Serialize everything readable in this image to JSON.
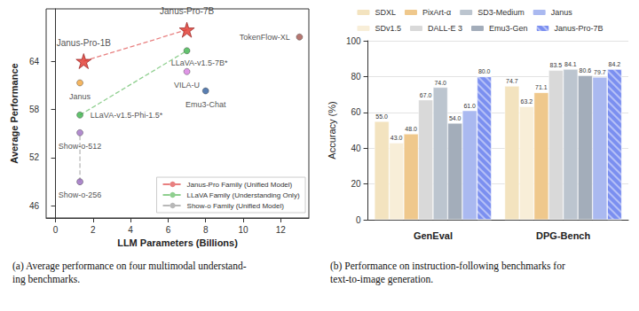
{
  "chart_data": [
    {
      "type": "scatter",
      "caption": [
        "(a) Average performance on four multimodal understand-",
        "ing benchmarks."
      ],
      "x_label": "LLM Parameters (Billions)",
      "y_label": "Average Performance",
      "xlim": [
        -0.5,
        13.5
      ],
      "xticks": [
        0,
        2,
        4,
        6,
        8,
        10,
        12
      ],
      "ylim": [
        44.5,
        70.5
      ],
      "yticks": [
        46,
        52,
        58,
        64
      ],
      "grid": false,
      "legend": "lower right",
      "points": [
        {
          "label": "Janus-Pro-1B",
          "x": 1.5,
          "y": 64.0,
          "color": "#e0342b",
          "marker": "star"
        },
        {
          "label": "Janus-Pro-7B",
          "x": 7,
          "y": 67.9,
          "color": "#e0342b",
          "marker": "star"
        },
        {
          "label": "Janus",
          "x": 1.3,
          "y": 61.3,
          "color": "#f2a43a",
          "marker": "circle"
        },
        {
          "label": "TokenFlow-XL",
          "x": 13,
          "y": 67.0,
          "color": "#a4554e",
          "marker": "circle"
        },
        {
          "label": "LLaVA-v1.5-7B*",
          "x": 7,
          "y": 65.3,
          "color": "#3cb44b",
          "marker": "circle"
        },
        {
          "label": "VILA-U",
          "x": 7,
          "y": 62.7,
          "color": "#d77be0",
          "marker": "circle"
        },
        {
          "label": "Emu3-Chat",
          "x": 8,
          "y": 60.3,
          "color": "#2f5e9e",
          "marker": "circle"
        },
        {
          "label": "LLaVA-v1.5-Phi-1.5*",
          "x": 1.3,
          "y": 57.3,
          "color": "#3cb44b",
          "marker": "circle"
        },
        {
          "label": "Show-o-512",
          "x": 1.3,
          "y": 55.1,
          "color": "#a071c4",
          "marker": "circle"
        },
        {
          "label": "Show-o-256",
          "x": 1.3,
          "y": 49.0,
          "color": "#9a6cc0",
          "marker": "circle"
        }
      ],
      "series": [
        {
          "name": "Janus-Pro Family (Unified Model)",
          "type": "line",
          "color": "#e88080",
          "line_style": "dashed",
          "x": [
            1.5,
            7
          ],
          "values": [
            64.0,
            67.9
          ]
        },
        {
          "name": "LLaVA Family (Understanding Only)",
          "type": "line",
          "color": "#8fcf8f",
          "line_style": "dashed",
          "x": [
            1.3,
            7
          ],
          "values": [
            57.3,
            65.3
          ]
        },
        {
          "name": "Show-o Family (Unified Model)",
          "type": "line",
          "color": "#b8b8b8",
          "line_style": "dashed",
          "x": [
            1.3,
            1.3
          ],
          "values": [
            49.0,
            55.1
          ]
        }
      ]
    },
    {
      "type": "bar",
      "caption": [
        "(b) Performance on instruction-following benchmarks for",
        "text-to-image generation."
      ],
      "y_label": "Accuracy (%)",
      "categories": [
        "GenEval",
        "DPG-Bench"
      ],
      "ylim": [
        0,
        100
      ],
      "yticks": [
        0,
        20,
        40,
        60,
        80,
        100
      ],
      "grid": true,
      "legend": "upper center",
      "data_labels": true,
      "series": [
        {
          "name": "SDXL",
          "color": "#f3e3bf",
          "values": [
            55.0,
            74.7
          ],
          "value_labels": [
            "55.0",
            "74.7"
          ]
        },
        {
          "name": "SDv1.5",
          "color": "#f8eed8",
          "values": [
            43.0,
            63.2
          ],
          "value_labels": [
            "43.0",
            "63.2"
          ]
        },
        {
          "name": "PixArt-α",
          "color": "#efc88c",
          "values": [
            48.0,
            71.1
          ],
          "value_labels": [
            "48.0",
            "71.1"
          ]
        },
        {
          "name": "DALL-E 3",
          "color": "#d9d9d9",
          "values": [
            67.0,
            83.5
          ],
          "value_labels": [
            "67.0",
            "83.5"
          ]
        },
        {
          "name": "SD3-Medium",
          "color": "#bcc5cf",
          "values": [
            74.0,
            84.1
          ],
          "value_labels": [
            "74.0",
            "84.1"
          ]
        },
        {
          "name": "Emu3-Gen",
          "color": "#a3adba",
          "values": [
            54.0,
            80.6
          ],
          "value_labels": [
            "54.0",
            "80.6"
          ]
        },
        {
          "name": "Janus",
          "color": "#aab9f0",
          "values": [
            61.0,
            79.7
          ],
          "value_labels": [
            "61.0",
            "79.7"
          ]
        },
        {
          "name": "Janus-Pro-7B",
          "color": "#7b8ff0",
          "values": [
            80.0,
            84.2
          ],
          "value_labels": [
            "80.0",
            "84.2"
          ]
        }
      ]
    }
  ]
}
